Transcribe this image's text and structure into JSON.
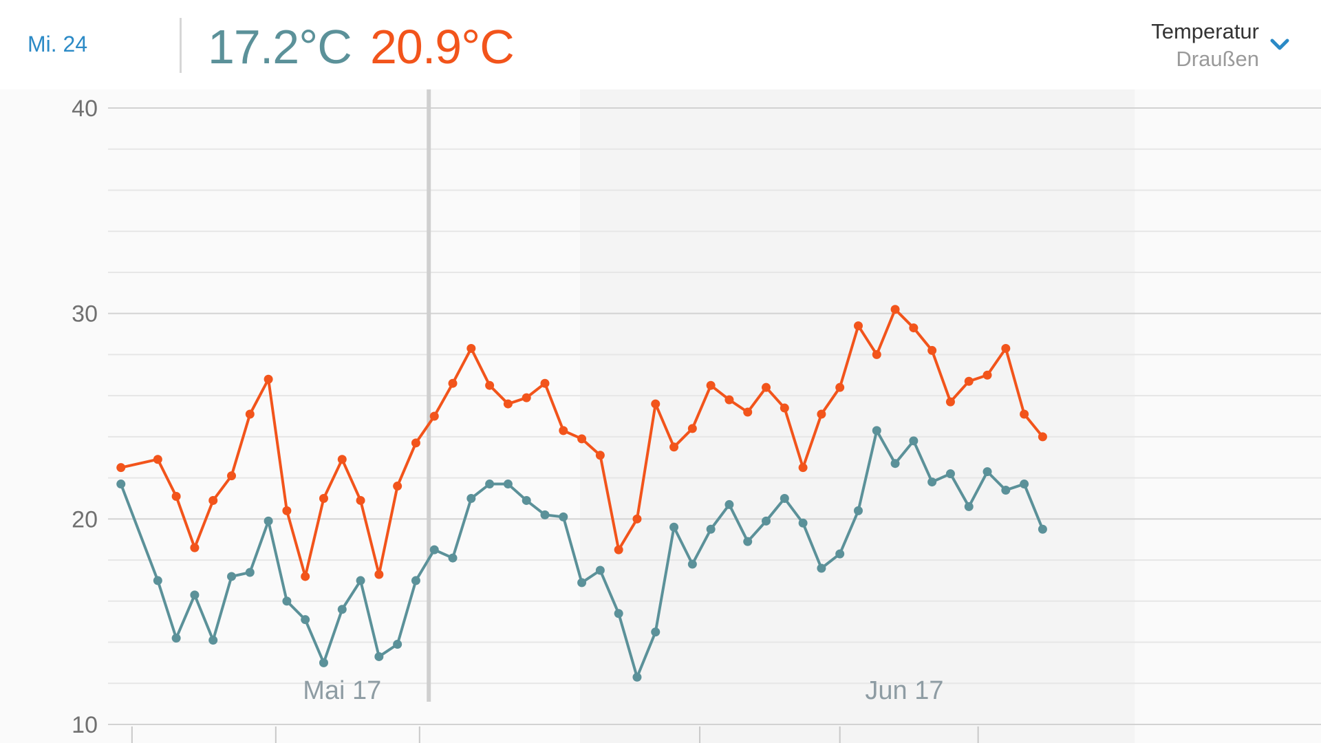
{
  "header": {
    "date_label": "Mi. 24",
    "min_temp": "17.2°C",
    "max_temp": "20.9°C",
    "metric_title": "Temperatur",
    "metric_subtitle": "Draußen",
    "dropdown_icon": "chevron-down-icon"
  },
  "colors": {
    "min_series": "#5b9199",
    "max_series": "#f2541b",
    "accent": "#2b8ac6",
    "selection_line": "#cfcfcf",
    "band": "#f4f4f4"
  },
  "chart_data": {
    "type": "line",
    "ylim": [
      10,
      40
    ],
    "y_ticks": [
      "10",
      "20",
      "30",
      "40"
    ],
    "y_minor_step": 2,
    "x": [
      -9,
      -7,
      -6,
      -5,
      -4,
      -3,
      -2,
      -1,
      0,
      1,
      2,
      3,
      4,
      5,
      6,
      7,
      8,
      9,
      10,
      11,
      12,
      13,
      14,
      15,
      16,
      17,
      18,
      19,
      20,
      21,
      22,
      23,
      24,
      25,
      26,
      27,
      28,
      29,
      30,
      31,
      32,
      33,
      34,
      35,
      36,
      37,
      38,
      39,
      40,
      41
    ],
    "x_min": -9.7,
    "x_max": 56.1,
    "x_ticks": [
      -8.4,
      -0.6,
      7.2,
      22.4,
      30,
      37.5
    ],
    "month_labels": [
      {
        "label": "Mai 17",
        "x": 3
      },
      {
        "label": "Jun 17",
        "x": 33.5
      }
    ],
    "shaded_range": [
      15.9,
      46
    ],
    "selected_x": 7.7,
    "series": [
      {
        "color": "#f2541b",
        "values": [
          22.5,
          22.9,
          21.1,
          18.6,
          20.9,
          22.1,
          25.1,
          26.8,
          20.4,
          17.2,
          21.0,
          22.9,
          20.9,
          17.3,
          21.6,
          23.7,
          25.0,
          26.6,
          28.3,
          26.5,
          25.6,
          25.9,
          26.6,
          24.3,
          23.9,
          23.1,
          18.5,
          20.0,
          25.6,
          23.5,
          24.4,
          26.5,
          25.8,
          25.2,
          26.4,
          25.4,
          22.5,
          25.1,
          26.4,
          29.4,
          28.0,
          30.2,
          29.3,
          28.2,
          25.7,
          26.7,
          27.0,
          28.3,
          25.1,
          24.0
        ]
      },
      {
        "color": "#5b9199",
        "values": [
          21.7,
          17.0,
          14.2,
          16.3,
          14.1,
          17.2,
          17.4,
          19.9,
          16.0,
          15.1,
          13.0,
          15.6,
          17.0,
          13.3,
          13.9,
          17.0,
          18.5,
          18.1,
          21.0,
          21.7,
          21.7,
          20.9,
          20.2,
          20.1,
          16.9,
          17.5,
          15.4,
          12.3,
          14.5,
          19.6,
          17.8,
          19.5,
          20.7,
          18.9,
          19.9,
          21.0,
          19.8,
          17.6,
          18.3,
          20.4,
          24.3,
          22.7,
          23.8,
          21.8,
          22.2,
          20.6,
          22.3,
          21.4,
          21.7,
          19.5
        ]
      }
    ]
  }
}
